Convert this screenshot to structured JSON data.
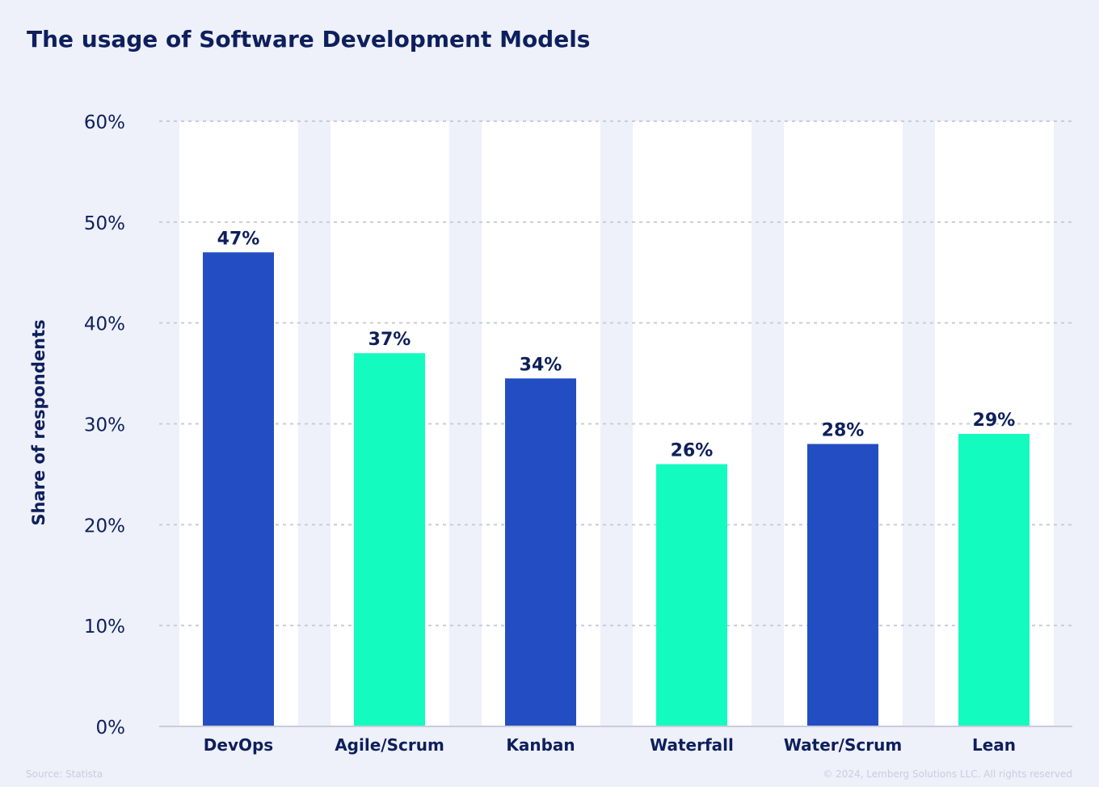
{
  "chart_data": {
    "type": "bar",
    "title": "The usage of Software Development Models",
    "xlabel": "",
    "ylabel": "Share of respondents",
    "categories": [
      "DevOps",
      "Agile/Scrum",
      "Kanban",
      "Waterfall",
      "Water/Scrum",
      "Lean"
    ],
    "values": [
      47,
      37,
      34.5,
      26,
      28,
      29
    ],
    "data_labels": [
      "47%",
      "37%",
      "34%",
      "26%",
      "28%",
      "29%"
    ],
    "ylim": [
      0,
      60
    ],
    "yticks": [
      0,
      10,
      20,
      30,
      40,
      50,
      60
    ],
    "ytick_labels": [
      "0%",
      "10%",
      "20%",
      "30%",
      "40%",
      "50%",
      "60%"
    ],
    "grid": true,
    "colors": [
      "#234dc2",
      "#14fbc0",
      "#234dc2",
      "#14fbc0",
      "#234dc2",
      "#14fbc0"
    ]
  },
  "footer": {
    "source": "Source: Statista",
    "copyright": "© 2024, Lemberg Solutions LLC. All rights reserved"
  }
}
